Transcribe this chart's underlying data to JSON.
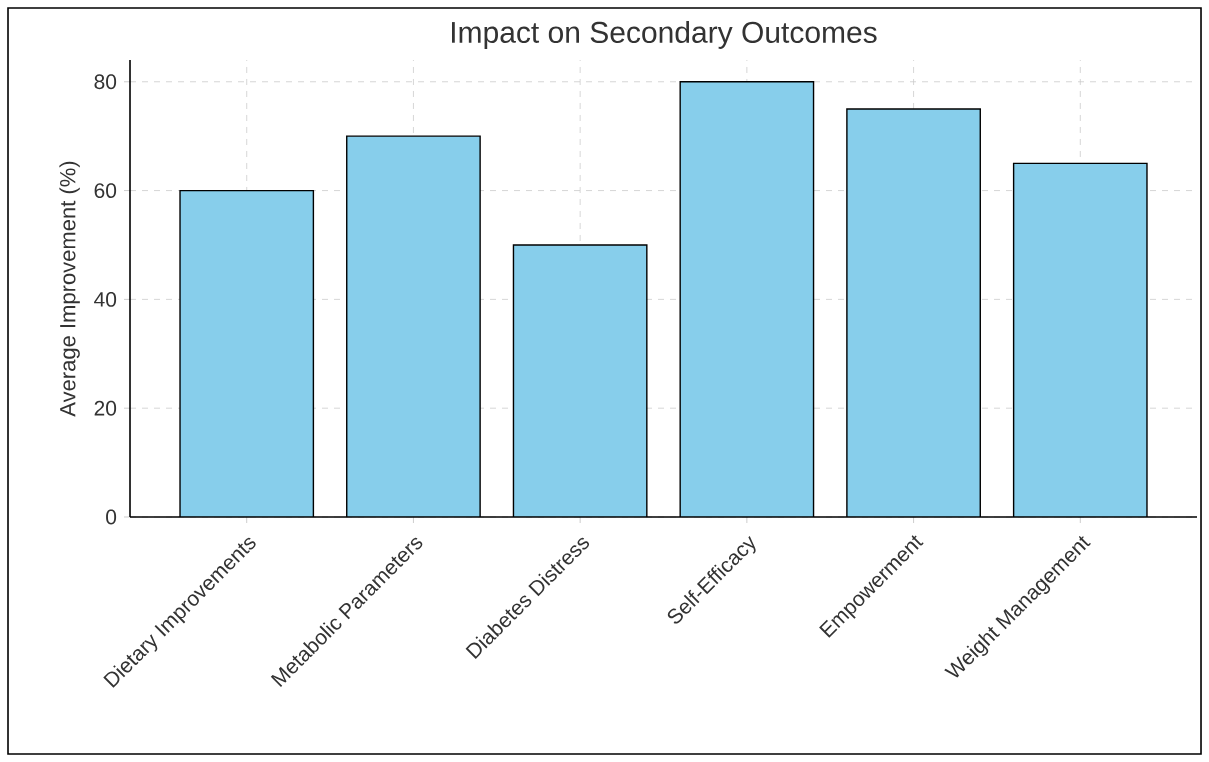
{
  "chart_data": {
    "type": "bar",
    "title": "Impact on Secondary Outcomes",
    "ylabel": "Average Improvement (%)",
    "categories": [
      "Dietary Improvements",
      "Metabolic Parameters",
      "Diabetes Distress",
      "Self-Efficacy",
      "Empowerment",
      "Weight Management"
    ],
    "values": [
      60,
      70,
      50,
      80,
      75,
      65
    ],
    "color": "#87ceeb",
    "ylim": [
      0,
      84
    ],
    "yticks": [
      0,
      20,
      40,
      60,
      80
    ],
    "grid": true
  }
}
